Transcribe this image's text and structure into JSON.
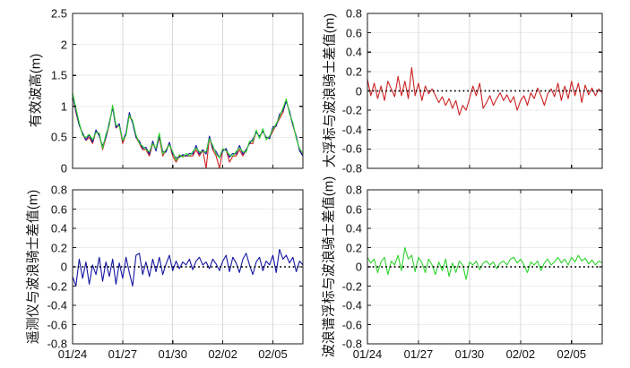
{
  "figure": {
    "background": "#ffffff",
    "axis_color": "#1a1a1a",
    "grid_color_vertical": "#d9d9d9",
    "grid_color_horizontal": "#ececec",
    "zero_line_color": "#000000"
  },
  "chart_data": [
    {
      "id": "wave-height",
      "type": "line",
      "position": "top-left",
      "title": "",
      "xlabel": "",
      "ylabel": "有效波高(m)",
      "xlim": [
        0,
        13.8
      ],
      "ylim": [
        0,
        2.5
      ],
      "grid": true,
      "zero_line": false,
      "show_xtick_labels": false,
      "xtick_values": [
        0,
        3,
        6,
        9,
        12
      ],
      "xtick_labels": [
        "01/24",
        "01/27",
        "01/30",
        "02/02",
        "02/05"
      ],
      "ytick_values": [
        0,
        0.5,
        1,
        1.5,
        2,
        2.5
      ],
      "ytick_labels": [
        "0",
        "0.5",
        "1",
        "1.5",
        "2",
        "2.5"
      ],
      "x_start": 0,
      "x_step": 0.2,
      "x_unit": "days from 01/24",
      "series": [
        {
          "name": "red",
          "color": "#cc2222",
          "values": [
            1.2,
            0.9,
            0.7,
            0.55,
            0.45,
            0.5,
            0.4,
            0.6,
            0.55,
            0.3,
            0.5,
            0.7,
            1.0,
            0.65,
            0.7,
            0.4,
            0.55,
            0.85,
            0.75,
            0.5,
            0.4,
            0.3,
            0.3,
            0.2,
            0.4,
            0.3,
            0.5,
            0.2,
            0.3,
            0.4,
            0.2,
            0.1,
            0.2,
            0.2,
            0.2,
            0.2,
            0.2,
            0.3,
            0.2,
            0.3,
            0.0,
            0.5,
            0.3,
            0.2,
            0.0,
            0.3,
            0.3,
            0.1,
            0.2,
            0.2,
            0.3,
            0.2,
            0.3,
            0.4,
            0.4,
            0.6,
            0.5,
            0.6,
            0.5,
            0.5,
            0.6,
            0.7,
            0.8,
            0.9,
            1.1,
            0.9,
            0.7,
            0.5,
            0.3,
            0.2
          ]
        },
        {
          "name": "blue",
          "color": "#1515a3",
          "values": [
            1.18,
            0.93,
            0.7,
            0.57,
            0.46,
            0.54,
            0.42,
            0.62,
            0.52,
            0.36,
            0.5,
            0.74,
            0.98,
            0.66,
            0.72,
            0.44,
            0.57,
            0.9,
            0.73,
            0.5,
            0.44,
            0.32,
            0.34,
            0.23,
            0.44,
            0.28,
            0.53,
            0.27,
            0.26,
            0.42,
            0.23,
            0.17,
            0.18,
            0.22,
            0.2,
            0.24,
            0.23,
            0.37,
            0.23,
            0.3,
            0.23,
            0.52,
            0.33,
            0.27,
            0.17,
            0.28,
            0.32,
            0.18,
            0.24,
            0.23,
            0.37,
            0.23,
            0.3,
            0.4,
            0.47,
            0.58,
            0.52,
            0.6,
            0.5,
            0.48,
            0.67,
            0.68,
            0.87,
            0.93,
            1.08,
            0.92,
            0.7,
            0.52,
            0.28,
            0.2
          ]
        },
        {
          "name": "green",
          "color": "#2ed32e",
          "values": [
            1.22,
            0.97,
            0.74,
            0.53,
            0.5,
            0.55,
            0.46,
            0.58,
            0.57,
            0.32,
            0.55,
            0.7,
            1.02,
            0.7,
            0.68,
            0.45,
            0.53,
            0.86,
            0.77,
            0.54,
            0.4,
            0.36,
            0.3,
            0.27,
            0.4,
            0.32,
            0.57,
            0.23,
            0.3,
            0.38,
            0.27,
            0.13,
            0.22,
            0.18,
            0.24,
            0.2,
            0.27,
            0.33,
            0.27,
            0.26,
            0.27,
            0.48,
            0.37,
            0.23,
            0.17,
            0.32,
            0.28,
            0.22,
            0.2,
            0.27,
            0.33,
            0.27,
            0.26,
            0.44,
            0.43,
            0.62,
            0.48,
            0.64,
            0.46,
            0.52,
            0.63,
            0.72,
            0.83,
            0.97,
            1.12,
            0.88,
            0.74,
            0.48,
            0.32,
            0.24
          ]
        }
      ]
    },
    {
      "id": "big-buoy-diff",
      "type": "line",
      "position": "top-right",
      "title": "",
      "xlabel": "",
      "ylabel": "大浮标与波浪骑士差值(m)",
      "xlim": [
        0,
        13.8
      ],
      "ylim": [
        -0.8,
        0.8
      ],
      "grid": true,
      "zero_line": true,
      "show_xtick_labels": false,
      "xtick_values": [
        0,
        3,
        6,
        9,
        12
      ],
      "xtick_labels": [
        "01/24",
        "01/27",
        "01/30",
        "02/02",
        "02/05"
      ],
      "ytick_values": [
        -0.8,
        -0.6,
        -0.4,
        -0.2,
        0,
        0.2,
        0.4,
        0.6,
        0.8
      ],
      "ytick_labels": [
        "-0.8",
        "-0.6",
        "-0.4",
        "-0.2",
        "0",
        "0.2",
        "0.4",
        "0.6",
        "0.8"
      ],
      "x_start": 0,
      "x_step": 0.2,
      "x_unit": "days from 01/24",
      "series": [
        {
          "name": "red",
          "color": "#cc2222",
          "values": [
            0.12,
            -0.05,
            0.08,
            -0.08,
            0.05,
            -0.1,
            0.1,
            0.02,
            -0.06,
            0.15,
            -0.05,
            0.1,
            -0.08,
            0.24,
            -0.05,
            0.08,
            -0.1,
            0.05,
            -0.03,
            0.02,
            -0.05,
            -0.12,
            -0.06,
            -0.15,
            -0.08,
            -0.18,
            -0.1,
            -0.25,
            -0.15,
            -0.2,
            -0.08,
            0.05,
            -0.05,
            0.08,
            -0.18,
            -0.12,
            -0.05,
            -0.15,
            -0.08,
            -0.02,
            -0.1,
            -0.04,
            -0.12,
            -0.06,
            -0.2,
            -0.1,
            -0.05,
            -0.15,
            -0.02,
            -0.08,
            0.03,
            -0.05,
            -0.15,
            -0.03,
            0.02,
            -0.06,
            0.08,
            -0.1,
            0.05,
            -0.08,
            0.1,
            -0.05,
            0.08,
            -0.12,
            0.06,
            -0.04,
            0.03,
            -0.05,
            0.02,
            -0.02
          ]
        }
      ]
    },
    {
      "id": "telemeter-diff",
      "type": "line",
      "position": "bottom-left",
      "title": "",
      "xlabel": "",
      "ylabel": "遥测仪与波浪骑士差值(m)",
      "xlim": [
        0,
        13.8
      ],
      "ylim": [
        -0.8,
        0.8
      ],
      "grid": true,
      "zero_line": true,
      "show_xtick_labels": true,
      "xtick_values": [
        0,
        3,
        6,
        9,
        12
      ],
      "xtick_labels": [
        "01/24",
        "01/27",
        "01/30",
        "02/02",
        "02/05"
      ],
      "ytick_values": [
        -0.8,
        -0.6,
        -0.4,
        -0.2,
        0,
        0.2,
        0.4,
        0.6,
        0.8
      ],
      "ytick_labels": [
        "-0.8",
        "-0.6",
        "-0.4",
        "-0.2",
        "0",
        "0.2",
        "0.4",
        "0.6",
        "0.8"
      ],
      "x_start": 0,
      "x_step": 0.2,
      "x_unit": "days from 01/24",
      "series": [
        {
          "name": "blue",
          "color": "#1515a3",
          "values": [
            -0.1,
            -0.2,
            0.08,
            -0.12,
            0.05,
            -0.18,
            0.02,
            -0.08,
            0.1,
            -0.15,
            0.05,
            -0.1,
            0.08,
            -0.18,
            0.04,
            -0.12,
            0.1,
            -0.06,
            -0.2,
            0.12,
            0.14,
            -0.08,
            0.05,
            -0.1,
            0.08,
            -0.05,
            0.1,
            -0.08,
            0.03,
            0.12,
            -0.04,
            0.06,
            -0.02,
            0.05,
            0.02,
            0.08,
            -0.03,
            0.06,
            0.1,
            0.02,
            0.05,
            -0.02,
            0.08,
            0.03,
            -0.04,
            0.06,
            0.12,
            -0.05,
            0.1,
            0.04,
            -0.06,
            0.08,
            0.14,
            0.02,
            -0.08,
            0.05,
            0.1,
            -0.04,
            0.06,
            0.02,
            0.12,
            -0.06,
            0.18,
            0.08,
            0.12,
            0.04,
            0.1,
            -0.05,
            0.06,
            0.02
          ]
        }
      ]
    },
    {
      "id": "spectral-buoy-diff",
      "type": "line",
      "position": "bottom-right",
      "title": "",
      "xlabel": "",
      "ylabel": "波浪谱浮标与波浪骑士差值(m)",
      "xlim": [
        0,
        13.8
      ],
      "ylim": [
        -0.8,
        0.8
      ],
      "grid": true,
      "zero_line": true,
      "show_xtick_labels": true,
      "xtick_values": [
        0,
        3,
        6,
        9,
        12
      ],
      "xtick_labels": [
        "01/24",
        "01/27",
        "01/30",
        "02/02",
        "02/05"
      ],
      "ytick_values": [
        -0.8,
        -0.6,
        -0.4,
        -0.2,
        0,
        0.2,
        0.4,
        0.6,
        0.8
      ],
      "ytick_labels": [
        "-0.8",
        "-0.6",
        "-0.4",
        "-0.2",
        "0",
        "0.2",
        "0.4",
        "0.6",
        "0.8"
      ],
      "x_start": 0,
      "x_step": 0.2,
      "x_unit": "days from 01/24",
      "series": [
        {
          "name": "green",
          "color": "#2ed32e",
          "values": [
            0.1,
            0.04,
            0.08,
            -0.06,
            0.05,
            0.1,
            -0.08,
            0.06,
            0.02,
            0.12,
            -0.04,
            0.2,
            0.08,
            0.12,
            -0.05,
            0.1,
            0.04,
            -0.06,
            0.08,
            0.02,
            -0.08,
            0.05,
            -0.04,
            0.08,
            -0.1,
            0.04,
            -0.06,
            0.06,
            0.02,
            -0.13,
            0.05,
            0.02,
            0.06,
            -0.03,
            0.04,
            0.06,
            0.02,
            0.05,
            -0.02,
            0.04,
            0.06,
            0.02,
            0.08,
            0.1,
            0.04,
            0.08,
            0.02,
            -0.06,
            0.05,
            0.02,
            0.06,
            -0.04,
            0.04,
            0.08,
            0.02,
            0.05,
            0.1,
            0.04,
            0.08,
            0.02,
            0.1,
            0.05,
            0.12,
            0.06,
            0.09,
            0.03,
            0.07,
            0.02,
            0.06,
            0.04
          ]
        }
      ]
    }
  ]
}
